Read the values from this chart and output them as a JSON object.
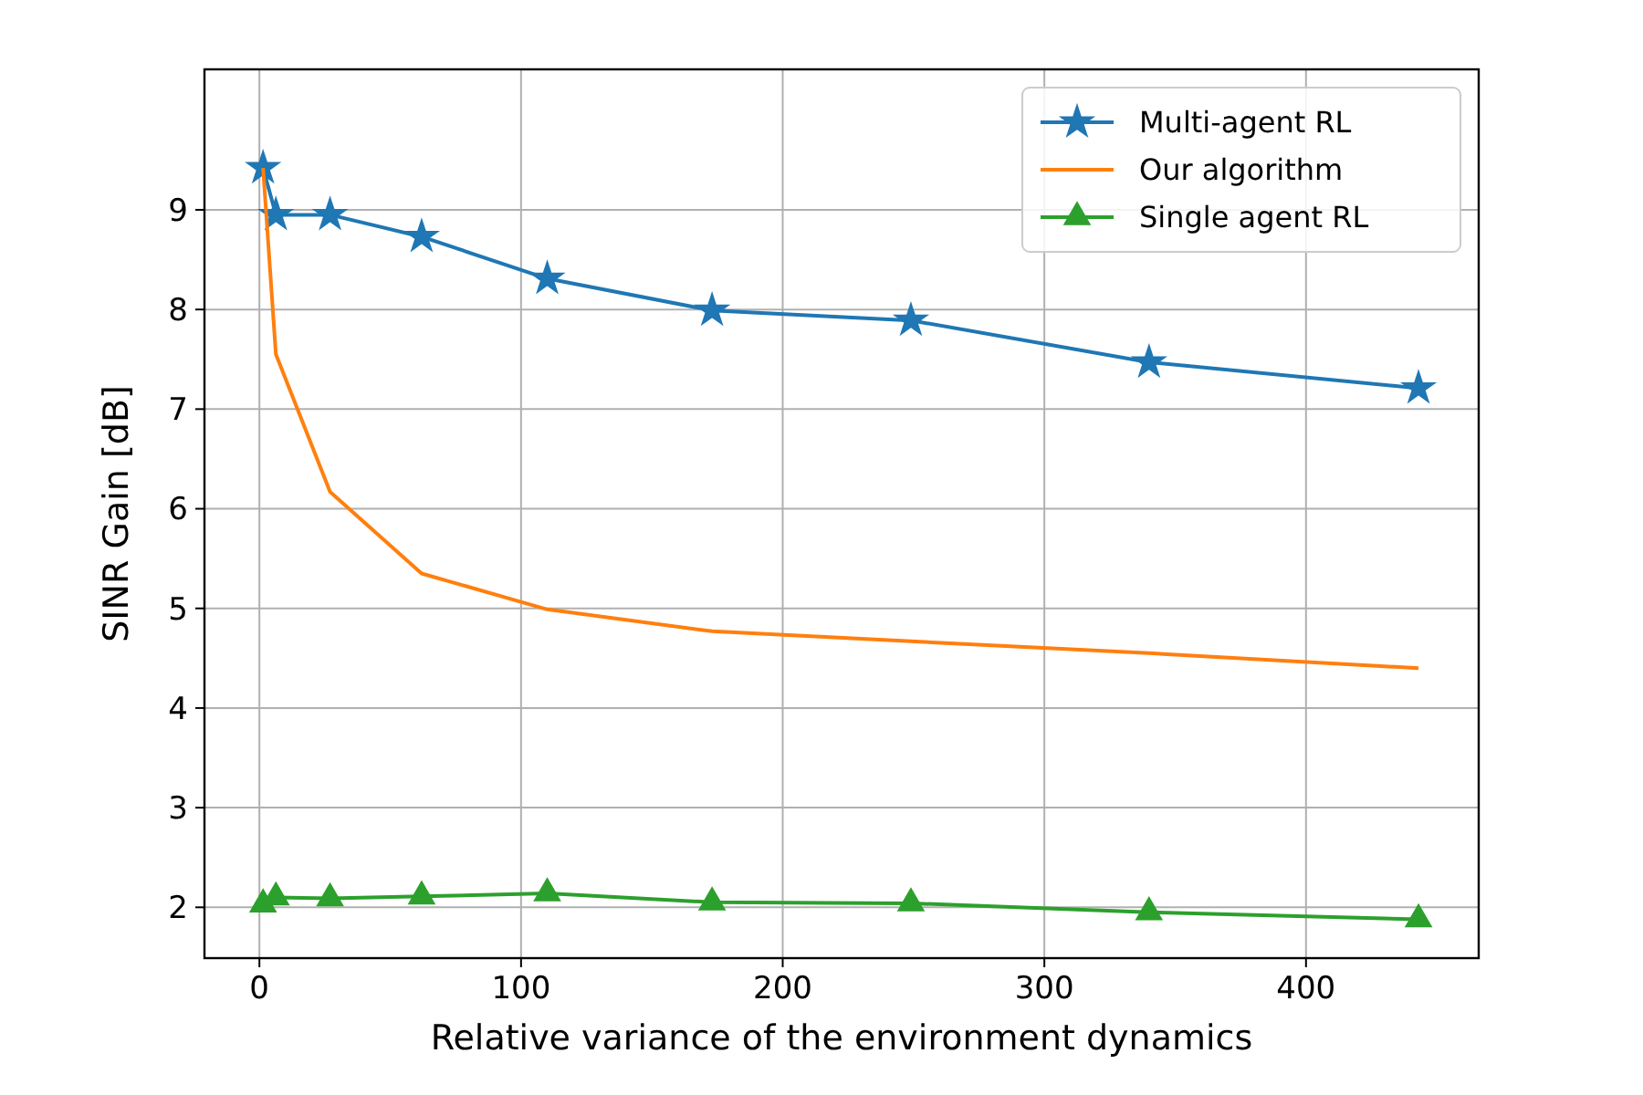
{
  "chart_data": {
    "type": "line",
    "xlabel": "Relative variance of the environment dynamics",
    "ylabel": "SINR Gain [dB]",
    "x": [
      1.4,
      6.3,
      27,
      62,
      110,
      173,
      249,
      340,
      443
    ],
    "series": [
      {
        "name": "Multi-agent RL",
        "color": "#1f77b4",
        "marker": "star",
        "values": [
          9.42,
          8.95,
          8.95,
          8.73,
          8.31,
          7.99,
          7.89,
          7.47,
          7.21
        ]
      },
      {
        "name": "Our algorithm",
        "color": "#ff7f0e",
        "marker": "none",
        "values": [
          9.42,
          7.55,
          6.17,
          5.35,
          4.99,
          4.77,
          4.67,
          4.55,
          4.4
        ]
      },
      {
        "name": "Single agent RL",
        "color": "#2ca02c",
        "marker": "triangle",
        "values": [
          2.03,
          2.1,
          2.09,
          2.11,
          2.14,
          2.05,
          2.04,
          1.95,
          1.88
        ]
      }
    ],
    "xlim": [
      -21,
      466
    ],
    "xticks": [
      0,
      100,
      200,
      300,
      400
    ],
    "ylim": [
      1.49,
      10.41
    ],
    "yticks": [
      2,
      3,
      4,
      5,
      6,
      7,
      8,
      9
    ],
    "grid": true,
    "legend": "top right",
    "line_style": "solid"
  }
}
